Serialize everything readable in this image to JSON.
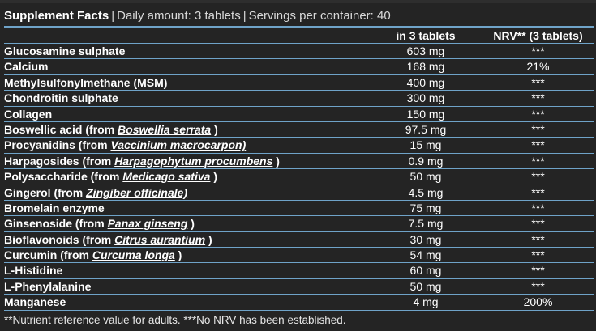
{
  "header": {
    "title": "Supplement Facts",
    "daily": "Daily amount: 3 tablets",
    "servings": "Servings per container: 40"
  },
  "columns": {
    "amount": "in 3 tablets",
    "nrv": "NRV** (3 tablets)"
  },
  "rows": [
    {
      "name": "Glucosamine sulphate",
      "amount": "603 mg",
      "nrv": "***"
    },
    {
      "name": "Calcium",
      "amount": "168 mg",
      "nrv": "21%"
    },
    {
      "name": "Methylsulfonylmethane (MSM)",
      "amount": "400 mg",
      "nrv": "***"
    },
    {
      "name": "Chondroitin sulphate",
      "amount": "300 mg",
      "nrv": "***"
    },
    {
      "name": "Collagen",
      "amount": "150 mg",
      "nrv": "***"
    },
    {
      "name": "Boswellic acid (from ",
      "latin": "Boswellia serrata",
      "suffix": " )",
      "amount": "97.5 mg",
      "nrv": "***"
    },
    {
      "name": "Procyanidins (from ",
      "latin": "Vaccinium macrocarpon)",
      "suffix": "",
      "amount": "15 mg",
      "nrv": "***"
    },
    {
      "name": "Harpagosides (from ",
      "latin": "Harpagophytum procumbens",
      "suffix": " )",
      "amount": "0.9 mg",
      "nrv": "***"
    },
    {
      "name": "Polysaccharide (from ",
      "latin": "Medicago sativa",
      "suffix": " )",
      "amount": "50 mg",
      "nrv": "***"
    },
    {
      "name": "Gingerol (from ",
      "latin": "Zingiber officinale)",
      "suffix": "",
      "amount": "4.5 mg",
      "nrv": "***"
    },
    {
      "name": "Bromelain enzyme",
      "amount": "75 mg",
      "nrv": "***"
    },
    {
      "name": "Ginsenoside (from ",
      "latin": "Panax ginseng",
      "suffix": " )",
      "amount": "7.5 mg",
      "nrv": "***"
    },
    {
      "name": "Bioflavonoids (from ",
      "latin": "Citrus aurantium",
      "suffix": " )",
      "amount": "30 mg",
      "nrv": "***"
    },
    {
      "name": "Curcumin (from ",
      "latin": "Curcuma longa",
      "suffix": " )",
      "amount": "54 mg",
      "nrv": "***"
    },
    {
      "name": "L-Histidine",
      "amount": "60 mg",
      "nrv": "***"
    },
    {
      "name": "L-Phenylalanine",
      "amount": "50 mg",
      "nrv": "***"
    },
    {
      "name": "Manganese",
      "amount": "4 mg",
      "nrv": "200%"
    }
  ],
  "footnote": "**Nutrient reference value for adults. ***No NRV has been established."
}
